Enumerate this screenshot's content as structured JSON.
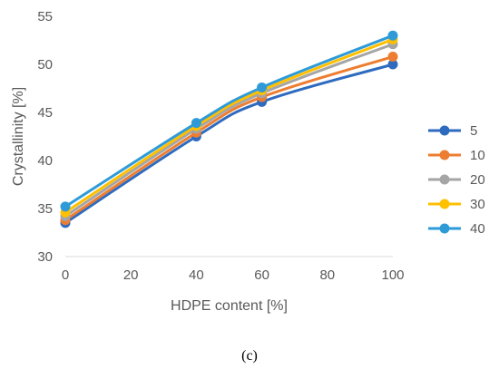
{
  "chart_data": {
    "type": "line",
    "title": "",
    "xlabel": "HDPE content [%]",
    "ylabel": "Crystallinity [%]",
    "x": [
      0,
      40,
      60,
      100
    ],
    "xlim": [
      0,
      100
    ],
    "ylim": [
      30,
      55
    ],
    "xticks": [
      "0",
      "20",
      "40",
      "60",
      "80",
      "100"
    ],
    "yticks": [
      "30",
      "35",
      "40",
      "45",
      "50",
      "55"
    ],
    "grid": false,
    "legend_position": "right",
    "series": [
      {
        "name": "5",
        "color": "#2e6bbf",
        "values": [
          33.5,
          42.5,
          46.1,
          50.0
        ]
      },
      {
        "name": "10",
        "color": "#ed7d31",
        "values": [
          33.8,
          42.9,
          46.6,
          50.8
        ]
      },
      {
        "name": "20",
        "color": "#a5a5a5",
        "values": [
          34.2,
          43.3,
          47.0,
          52.1
        ]
      },
      {
        "name": "30",
        "color": "#ffc000",
        "values": [
          34.6,
          43.6,
          47.3,
          52.6
        ]
      },
      {
        "name": "40",
        "color": "#2e9bd8",
        "values": [
          35.2,
          43.9,
          47.6,
          53.0
        ]
      }
    ]
  },
  "caption": "(c)"
}
